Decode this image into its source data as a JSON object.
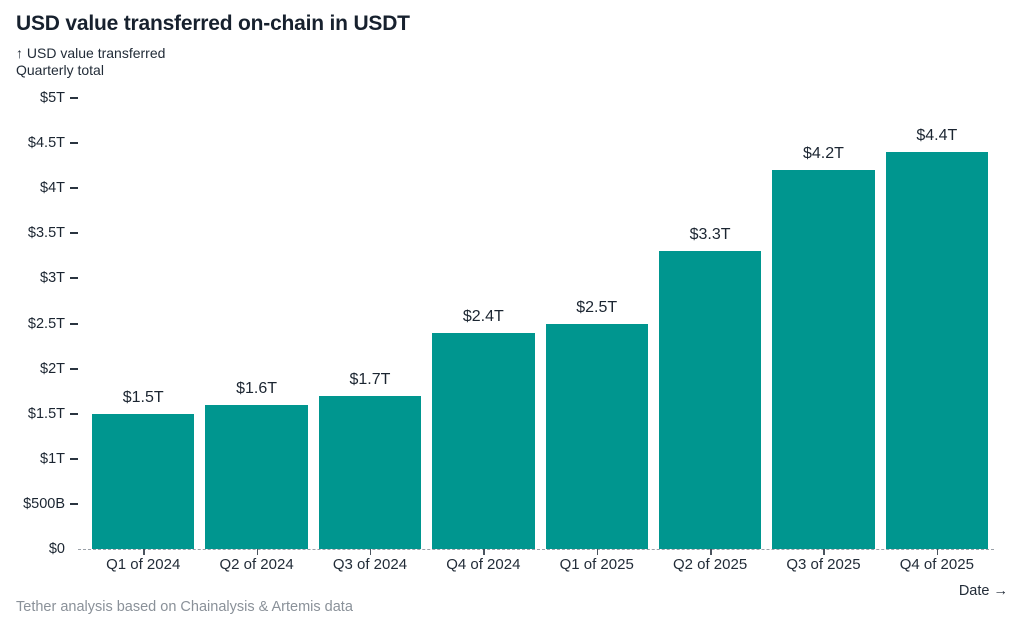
{
  "header": {
    "title": "USD value transferred on-chain in USDT",
    "subtitle_line1": "↑ USD value transferred",
    "subtitle_line2": "Quarterly total"
  },
  "chart_data": {
    "type": "bar",
    "title": "USD value transferred on-chain in USDT",
    "ylabel": "USD value transferred",
    "xlabel": "Date",
    "unit": "trillions of USD",
    "categories": [
      "Q1 of 2024",
      "Q2 of 2024",
      "Q3 of 2024",
      "Q4 of 2024",
      "Q1 of 2025",
      "Q2 of 2025",
      "Q3 of 2025",
      "Q4 of 2025"
    ],
    "values": [
      1.5,
      1.6,
      1.7,
      2.4,
      2.5,
      3.3,
      4.2,
      4.4
    ],
    "value_labels": [
      "$1.5T",
      "$1.6T",
      "$1.7T",
      "$2.4T",
      "$2.5T",
      "$3.3T",
      "$4.2T",
      "$4.4T"
    ],
    "ylim": [
      0,
      5
    ],
    "yticks": [
      {
        "value": 5,
        "label": "$5T"
      },
      {
        "value": 4.5,
        "label": "$4.5T"
      },
      {
        "value": 4,
        "label": "$4T"
      },
      {
        "value": 3.5,
        "label": "$3.5T"
      },
      {
        "value": 3,
        "label": "$3T"
      },
      {
        "value": 2.5,
        "label": "$2.5T"
      },
      {
        "value": 2,
        "label": "$2T"
      },
      {
        "value": 1.5,
        "label": "$1.5T"
      },
      {
        "value": 1,
        "label": "$1T"
      },
      {
        "value": 0.5,
        "label": "$500B"
      },
      {
        "value": 0,
        "label": "$0"
      }
    ],
    "bar_color": "#00968F",
    "grid": false,
    "legend": null
  },
  "footer": {
    "x_axis_caption": "Date →",
    "source_note": "Tether analysis based on Chainalysis & Artemis data"
  }
}
